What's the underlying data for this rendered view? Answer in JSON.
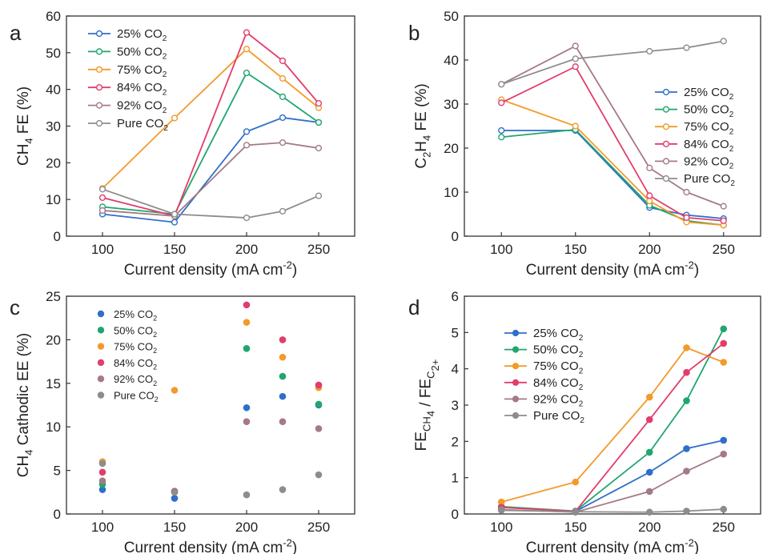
{
  "figure": {
    "series_names": [
      "25% CO2",
      "50% CO2",
      "75% CO2",
      "84% CO2",
      "92% CO2",
      "Pure CO2"
    ]
  },
  "colors": {
    "25% CO2": "#2f6fca",
    "50% CO2": "#1fa66f",
    "75% CO2": "#f39a2b",
    "84% CO2": "#e23d6b",
    "92% CO2": "#a47a84",
    "Pure CO2": "#8d8d8d"
  },
  "chart_data": [
    {
      "panel": "a",
      "type": "line",
      "marker": "open-circle",
      "title": "",
      "xlabel": "Current density (mA cm-2)",
      "ylabel": "CH4 FE (%)",
      "x": [
        100,
        150,
        200,
        225,
        250
      ],
      "xlim": [
        75,
        275
      ],
      "ylim": [
        0,
        60
      ],
      "xticks": [
        100,
        150,
        200,
        250
      ],
      "yticks": [
        0,
        10,
        20,
        30,
        40,
        50,
        60
      ],
      "legend": "top-left",
      "series": [
        {
          "name": "25% CO2",
          "values": [
            6,
            3.8,
            28.5,
            32.3,
            31
          ]
        },
        {
          "name": "50% CO2",
          "values": [
            8,
            6,
            44.5,
            38,
            31
          ]
        },
        {
          "name": "75% CO2",
          "values": [
            13,
            32.2,
            51,
            43,
            35
          ]
        },
        {
          "name": "84% CO2",
          "values": [
            10.5,
            5.5,
            55.5,
            47.8,
            36.2
          ]
        },
        {
          "name": "92% CO2",
          "values": [
            7,
            5.5,
            24.8,
            25.5,
            24
          ]
        },
        {
          "name": "Pure CO2",
          "values": [
            12.8,
            6,
            5,
            6.8,
            11
          ]
        }
      ]
    },
    {
      "panel": "b",
      "type": "line",
      "marker": "open-circle",
      "title": "",
      "xlabel": "Current density (mA cm-2)",
      "ylabel": "C2H4 FE (%)",
      "x": [
        100,
        150,
        200,
        225,
        250
      ],
      "xlim": [
        75,
        275
      ],
      "ylim": [
        0,
        50
      ],
      "xticks": [
        100,
        150,
        200,
        250
      ],
      "yticks": [
        0,
        10,
        20,
        30,
        40,
        50
      ],
      "legend": "right",
      "series": [
        {
          "name": "25% CO2",
          "values": [
            24,
            24,
            6.5,
            4.8,
            4
          ]
        },
        {
          "name": "50% CO2",
          "values": [
            22.5,
            24.2,
            7,
            3.5,
            2.5
          ]
        },
        {
          "name": "75% CO2",
          "values": [
            31,
            25,
            8,
            3.2,
            2.5
          ]
        },
        {
          "name": "84% CO2",
          "values": [
            30.3,
            38.5,
            9.2,
            4.2,
            3.5
          ]
        },
        {
          "name": "92% CO2",
          "values": [
            34.5,
            43.2,
            15.5,
            10,
            6.8
          ]
        },
        {
          "name": "Pure CO2",
          "values": [
            34.5,
            40.3,
            42,
            42.8,
            44.3
          ]
        }
      ]
    },
    {
      "panel": "c",
      "type": "scatter",
      "marker": "filled-circle",
      "title": "",
      "xlabel": "Current density (mA cm-2)",
      "ylabel": "CH4 Cathodic EE (%)",
      "x": [
        100,
        150,
        200,
        225,
        250
      ],
      "xlim": [
        75,
        275
      ],
      "ylim": [
        0,
        25
      ],
      "xticks": [
        100,
        150,
        200,
        250
      ],
      "yticks": [
        0,
        5,
        10,
        15,
        20,
        25
      ],
      "legend": "top-left",
      "series": [
        {
          "name": "25% CO2",
          "values": [
            2.8,
            1.8,
            12.2,
            13.5,
            12.5
          ]
        },
        {
          "name": "50% CO2",
          "values": [
            3.4,
            2.6,
            19,
            15.8,
            12.6
          ]
        },
        {
          "name": "75% CO2",
          "values": [
            6,
            14.2,
            22,
            18,
            14.5
          ]
        },
        {
          "name": "84% CO2",
          "values": [
            4.8,
            2.6,
            24,
            20,
            14.8
          ]
        },
        {
          "name": "92% CO2",
          "values": [
            3.8,
            2.5,
            10.6,
            10.6,
            9.8
          ]
        },
        {
          "name": "Pure CO2",
          "values": [
            5.8,
            2.5,
            2.2,
            2.8,
            4.5
          ]
        }
      ]
    },
    {
      "panel": "d",
      "type": "line",
      "marker": "filled-circle",
      "title": "",
      "xlabel": "Current density (mA cm-2)",
      "ylabel": "FECH4 / FEC2+",
      "x": [
        100,
        150,
        200,
        225,
        250
      ],
      "xlim": [
        75,
        275
      ],
      "ylim": [
        0,
        6
      ],
      "xticks": [
        100,
        150,
        200,
        250
      ],
      "yticks": [
        0,
        1,
        2,
        3,
        4,
        5,
        6
      ],
      "legend": "top-left",
      "series": [
        {
          "name": "25% CO2",
          "values": [
            0.2,
            0.07,
            1.15,
            1.8,
            2.03
          ]
        },
        {
          "name": "50% CO2",
          "values": [
            0.2,
            0.08,
            1.7,
            3.12,
            5.1
          ]
        },
        {
          "name": "75% CO2",
          "values": [
            0.33,
            0.88,
            3.22,
            4.58,
            4.18
          ]
        },
        {
          "name": "84% CO2",
          "values": [
            0.18,
            0.07,
            2.6,
            3.9,
            4.7
          ]
        },
        {
          "name": "92% CO2",
          "values": [
            0.12,
            0.05,
            0.62,
            1.18,
            1.65
          ]
        },
        {
          "name": "Pure CO2",
          "values": [
            0.1,
            0.06,
            0.05,
            0.08,
            0.13
          ]
        }
      ]
    }
  ]
}
